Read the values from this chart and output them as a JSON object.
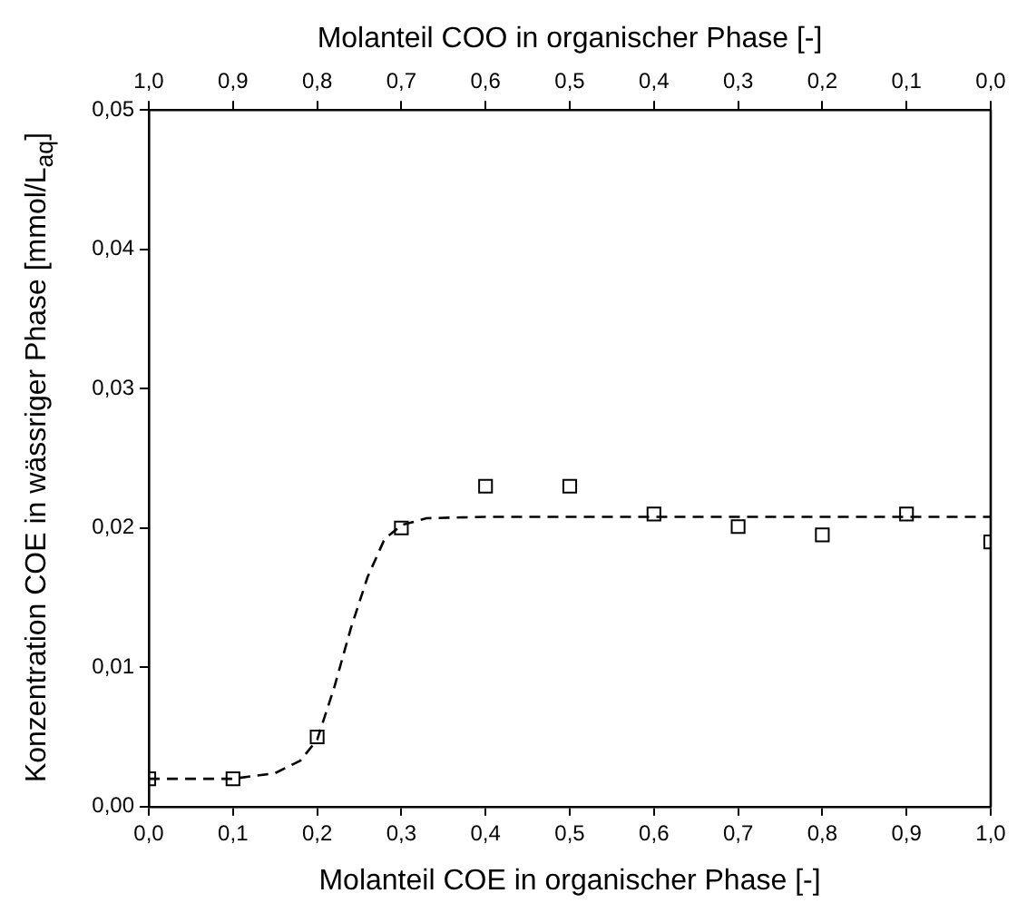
{
  "chart_data": {
    "type": "scatter",
    "xlabel": "Molanteil COE in organischer Phase [-]",
    "x2label": "Molanteil COO in organischer Phase [-]",
    "ylabel": "Konzentration COE in wässriger Phase [mmol/L$_{aq}$]",
    "series": [
      {
        "type": "scatter",
        "color": "#000000",
        "marker": "square",
        "x": [
          0,
          0.1,
          0.2,
          0.3,
          0.4,
          0.5,
          0.6,
          0.7,
          0.8,
          0.9,
          1.0
        ],
        "values": [
          0.002,
          0.002,
          0.005,
          0.02,
          0.023,
          0.023,
          0.021,
          0.0201,
          0.0195,
          0.021,
          0.019
        ]
      },
      {
        "type": "line",
        "color": "#000000",
        "marker": "none",
        "line_style": "dashed",
        "x": [
          0,
          0.1,
          0.15,
          0.18,
          0.2,
          0.22,
          0.24,
          0.26,
          0.28,
          0.3,
          0.33,
          0.4,
          0.6,
          0.8,
          1.0
        ],
        "values": [
          0.002,
          0.002,
          0.0024,
          0.0033,
          0.0048,
          0.0085,
          0.0128,
          0.0165,
          0.0192,
          0.0202,
          0.0207,
          0.0208,
          0.0208,
          0.0208,
          0.0208
        ]
      }
    ],
    "xlim": [
      0,
      1
    ],
    "xticks": [
      {
        "value": 0,
        "label": "0,0"
      },
      {
        "value": 0.1,
        "label": "0,1"
      },
      {
        "value": 0.2,
        "label": "0,2"
      },
      {
        "value": 0.3,
        "label": "0,3"
      },
      {
        "value": 0.4,
        "label": "0,4"
      },
      {
        "value": 0.5,
        "label": "0,5"
      },
      {
        "value": 0.6,
        "label": "0,6"
      },
      {
        "value": 0.7,
        "label": "0,7"
      },
      {
        "value": 0.8,
        "label": "0,8"
      },
      {
        "value": 0.9,
        "label": "0,9"
      },
      {
        "value": 1,
        "label": "1,0"
      }
    ],
    "x2lim": [
      1,
      0
    ],
    "x2ticks": [
      {
        "value": 1,
        "label": "1,0"
      },
      {
        "value": 0.9,
        "label": "0,9"
      },
      {
        "value": 0.8,
        "label": "0,8"
      },
      {
        "value": 0.7,
        "label": "0,7"
      },
      {
        "value": 0.6,
        "label": "0,6"
      },
      {
        "value": 0.5,
        "label": "0,5"
      },
      {
        "value": 0.4,
        "label": "0,4"
      },
      {
        "value": 0.3,
        "label": "0,3"
      },
      {
        "value": 0.2,
        "label": "0,2"
      },
      {
        "value": 0.1,
        "label": "0,1"
      },
      {
        "value": 0,
        "label": "0,0"
      }
    ],
    "ylim": [
      0,
      0.05
    ],
    "yticks": [
      {
        "value": 0,
        "label": "0,00"
      },
      {
        "value": 0.01,
        "label": "0,01"
      },
      {
        "value": 0.02,
        "label": "0,02"
      },
      {
        "value": 0.03,
        "label": "0,03"
      },
      {
        "value": 0.04,
        "label": "0,04"
      },
      {
        "value": 0.05,
        "label": "0,05"
      }
    ],
    "grid": false,
    "legend": false
  }
}
